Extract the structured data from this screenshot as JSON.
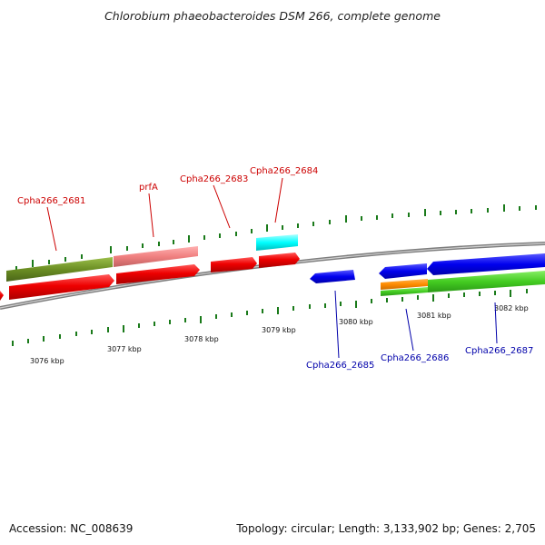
{
  "title": "Chlorobium phaeobacteroides DSM 266, complete genome",
  "footer": {
    "accession": "Accession: NC_008639",
    "summary": "Topology: circular; Length: 3,133,902 bp; Genes: 2,705"
  },
  "scale_labels": [
    "3076 kbp",
    "3077 kbp",
    "3078 kbp",
    "3079 kbp",
    "3080 kbp",
    "3081 kbp",
    "3082 kbp"
  ],
  "gene_labels": {
    "cpha266_2681": "Cpha266_2681",
    "prfa": "prfA",
    "cpha266_2683": "Cpha266_2683",
    "cpha266_2684": "Cpha266_2684",
    "cpha266_2685": "Cpha266_2685",
    "cpha266_2686": "Cpha266_2686",
    "cpha266_2687": "Cpha266_2687"
  },
  "colors": {
    "forward_label": "#cc0000",
    "reverse_label": "#0000aa",
    "red_gene": "#ee0000",
    "olive_gene": "#6b8e23",
    "pink_gene": "#f08080",
    "cyan_gene": "#00ffff",
    "blue_gene": "#0000ee",
    "orange_gene": "#ff8c00",
    "green_gene": "#44cc22",
    "tick": "#1a7a1a",
    "backbone": "#888888"
  }
}
